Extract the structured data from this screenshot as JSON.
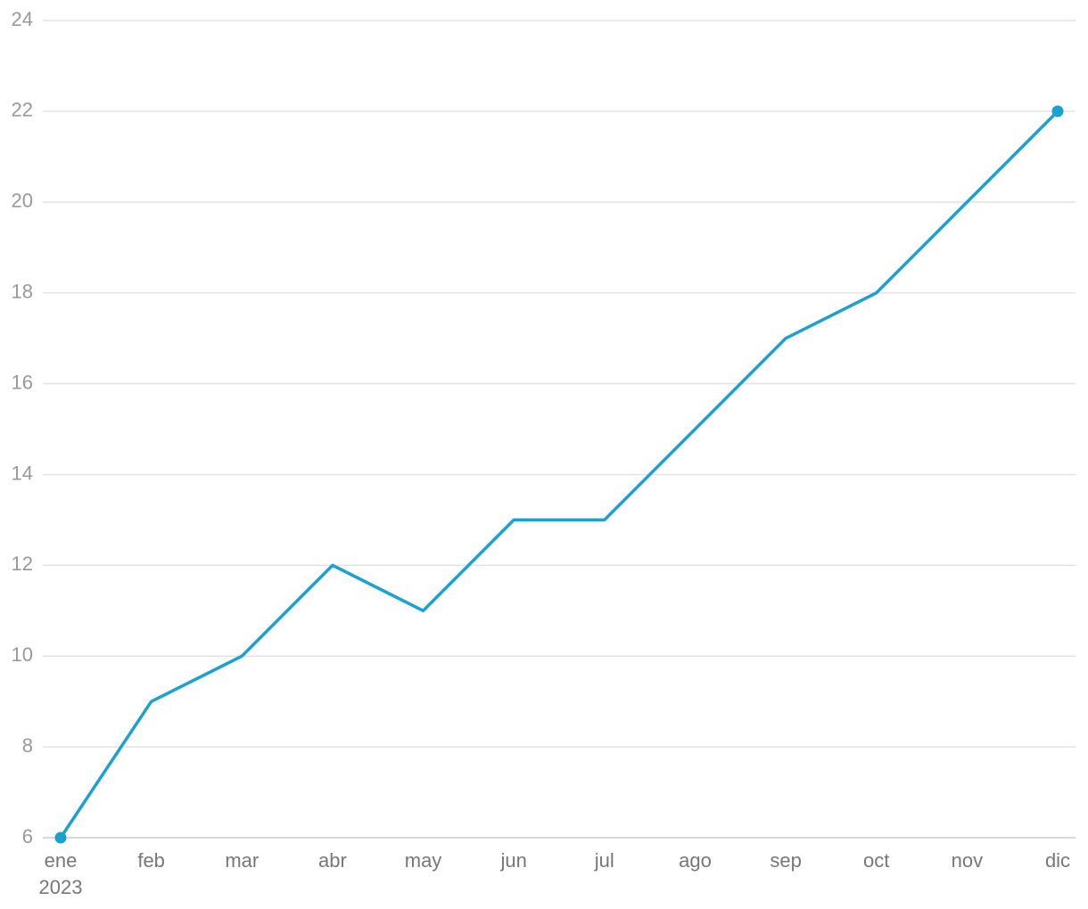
{
  "chart_data": {
    "type": "line",
    "categories": [
      "ene",
      "feb",
      "mar",
      "abr",
      "may",
      "jun",
      "jul",
      "ago",
      "sep",
      "oct",
      "nov",
      "dic"
    ],
    "year": "2023",
    "series": [
      {
        "color": "#1ba1cf",
        "values": [
          6,
          9,
          10,
          12,
          11,
          13,
          13,
          15,
          17,
          18,
          20,
          22
        ]
      }
    ],
    "ylim": [
      6,
      24
    ],
    "yticks": [
      6,
      8,
      10,
      12,
      14,
      16,
      18,
      20,
      22,
      24
    ],
    "grid": true,
    "endpoint_markers": true
  }
}
